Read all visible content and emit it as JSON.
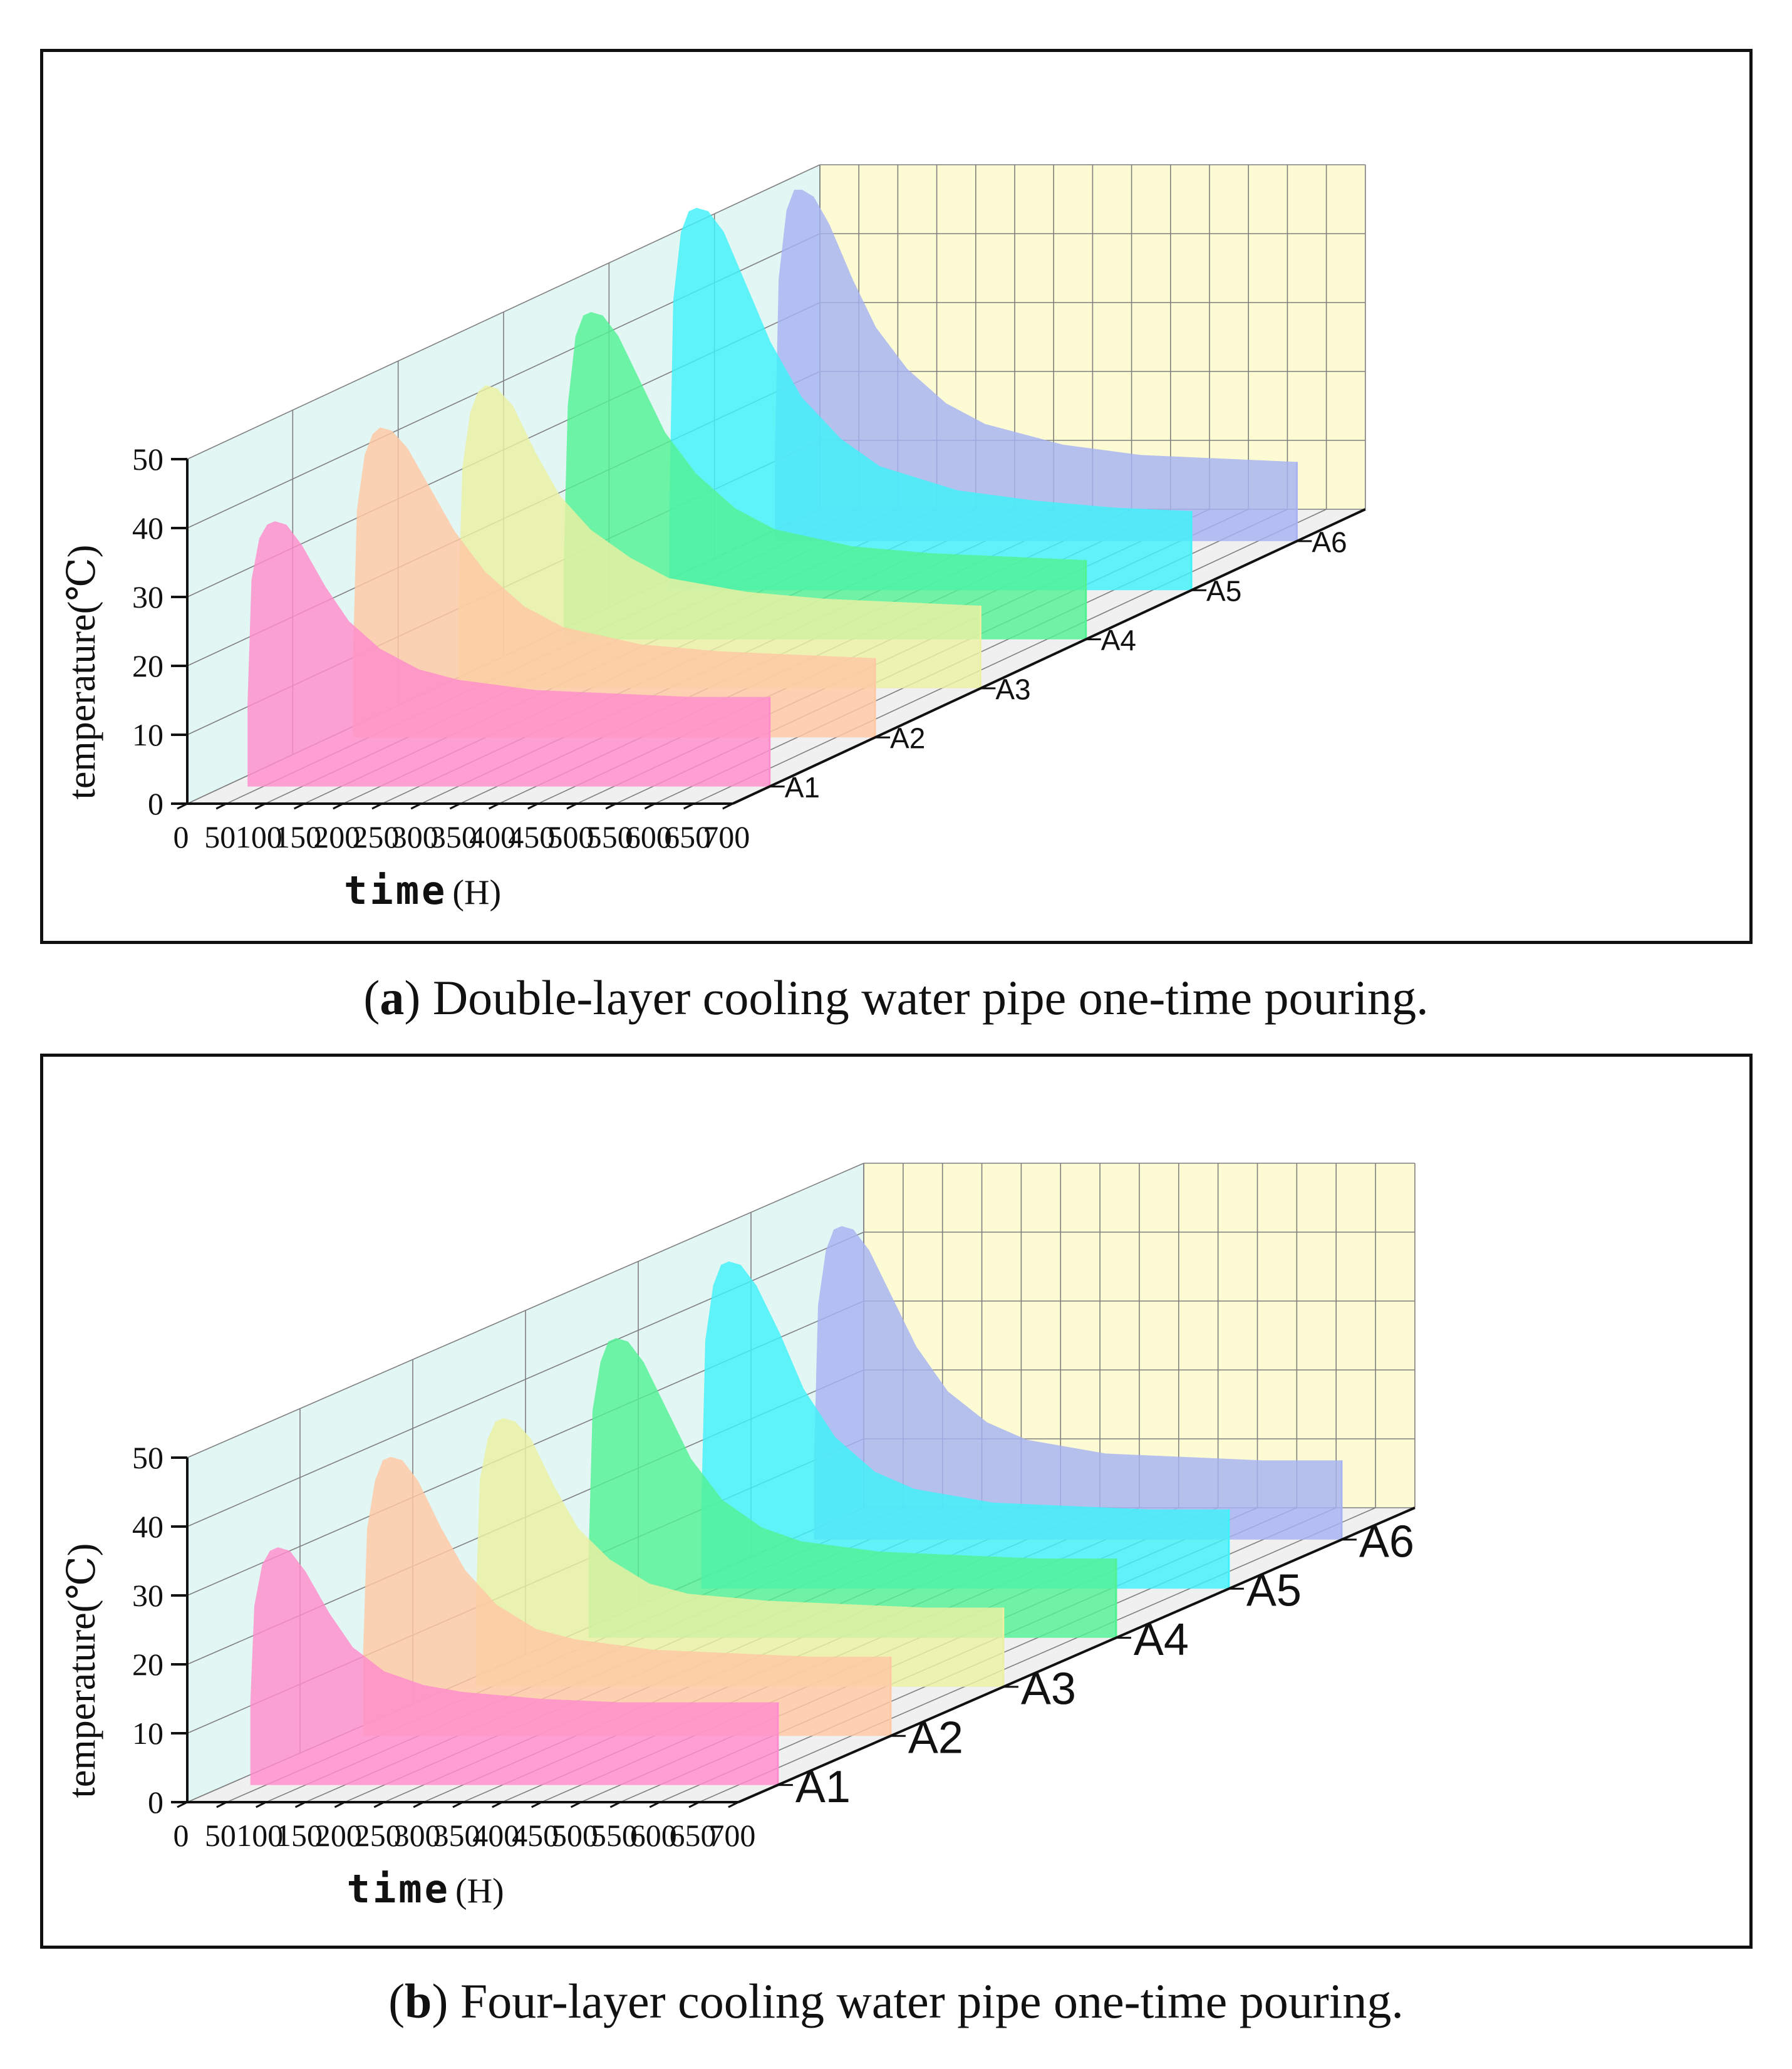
{
  "chart_data": [
    {
      "type": "area",
      "panel": "a",
      "caption_label": "a",
      "caption_text": "Double-layer cooling water pipe one-time pouring.",
      "xlabel": "time",
      "xunit": "(H)",
      "ylabel": "temperature(℃)",
      "xlim": [
        0,
        700
      ],
      "ylim": [
        0,
        50
      ],
      "xticks": [
        "0",
        "50",
        "100",
        "150",
        "200",
        "250",
        "300",
        "350",
        "400",
        "450",
        "500",
        "550",
        "600",
        "650",
        "700"
      ],
      "yticks": [
        "0",
        "10",
        "20",
        "30",
        "40",
        "50"
      ],
      "x": [
        30,
        35,
        45,
        55,
        65,
        80,
        100,
        130,
        160,
        200,
        250,
        300,
        400,
        500,
        600,
        700
      ],
      "series": [
        {
          "name": "A1",
          "color": "#ff8ccc",
          "values": [
            12,
            30,
            36,
            38,
            38.5,
            38,
            35,
            29,
            24,
            20,
            17,
            15.5,
            14,
            13.5,
            13,
            13
          ]
        },
        {
          "name": "A2",
          "color": "#ffc8a4",
          "values": [
            12,
            33,
            41,
            44,
            45,
            44.5,
            42,
            36,
            30,
            24,
            19,
            16,
            13.5,
            12.5,
            12,
            11.5
          ]
        },
        {
          "name": "A3",
          "color": "#ecf0a2",
          "values": [
            12,
            32,
            40,
            43,
            44,
            43.5,
            41,
            34,
            28,
            23,
            19,
            16,
            14,
            13,
            12.5,
            12
          ]
        },
        {
          "name": "A4",
          "color": "#52f294",
          "values": [
            12,
            34,
            44,
            47,
            47.5,
            47,
            44,
            37,
            30,
            24,
            19,
            16,
            13.5,
            12.5,
            12,
            11.5
          ]
        },
        {
          "name": "A5",
          "color": "#40f2fa",
          "values": [
            12,
            42,
            52,
            55,
            55.5,
            55,
            52,
            44,
            36,
            28,
            22,
            18,
            14.5,
            13,
            12,
            11.5
          ]
        },
        {
          "name": "A6",
          "color": "#a6b2f2",
          "values": [
            12,
            38,
            48,
            51,
            51,
            50,
            46,
            38,
            31,
            25,
            20,
            17,
            14,
            12.5,
            12,
            11.5
          ]
        }
      ]
    },
    {
      "type": "area",
      "panel": "b",
      "caption_label": "b",
      "caption_text": "Four-layer cooling water pipe one-time pouring.",
      "xlabel": "time",
      "xunit": "(H)",
      "ylabel": "temperature(℃)",
      "xlim": [
        0,
        700
      ],
      "ylim": [
        0,
        50
      ],
      "xticks": [
        "0",
        "50",
        "100",
        "150",
        "200",
        "250",
        "300",
        "350",
        "400",
        "450",
        "500",
        "550",
        "600",
        "650",
        "700"
      ],
      "yticks": [
        "0",
        "10",
        "20",
        "30",
        "40",
        "50"
      ],
      "x": [
        30,
        35,
        45,
        55,
        65,
        80,
        100,
        130,
        160,
        200,
        250,
        300,
        400,
        500,
        600,
        700
      ],
      "series": [
        {
          "name": "A1",
          "color": "#ff8ccc",
          "values": [
            12,
            26,
            32,
            34,
            34.5,
            34,
            31,
            25,
            20,
            16.5,
            14.5,
            13.5,
            12.5,
            12,
            12,
            12
          ]
        },
        {
          "name": "A2",
          "color": "#ffc8a4",
          "values": [
            12,
            30,
            37,
            40,
            40.5,
            40,
            37,
            30,
            24,
            19,
            15.5,
            14,
            12.5,
            12,
            11.5,
            11.5
          ]
        },
        {
          "name": "A3",
          "color": "#ecf0a2",
          "values": [
            12,
            30,
            36,
            38.5,
            39,
            38.5,
            36,
            29,
            23,
            18.5,
            15,
            13.5,
            12.5,
            12,
            11.5,
            11.5
          ]
        },
        {
          "name": "A4",
          "color": "#52f294",
          "values": [
            12,
            33,
            40,
            43,
            43.5,
            43,
            40,
            33,
            26,
            20,
            16,
            14,
            12.5,
            12,
            11.5,
            11.5
          ]
        },
        {
          "name": "A5",
          "color": "#40f2fa",
          "values": [
            12,
            36,
            44,
            47,
            47.5,
            47,
            44,
            37,
            29,
            22,
            17,
            14.5,
            12.5,
            12,
            11.5,
            11.5
          ]
        },
        {
          "name": "A6",
          "color": "#a6b2f2",
          "values": [
            12,
            34,
            42,
            45,
            45.5,
            45,
            42,
            35,
            28,
            21.5,
            17,
            14.5,
            12.5,
            12,
            11.5,
            11.5
          ]
        }
      ]
    }
  ]
}
